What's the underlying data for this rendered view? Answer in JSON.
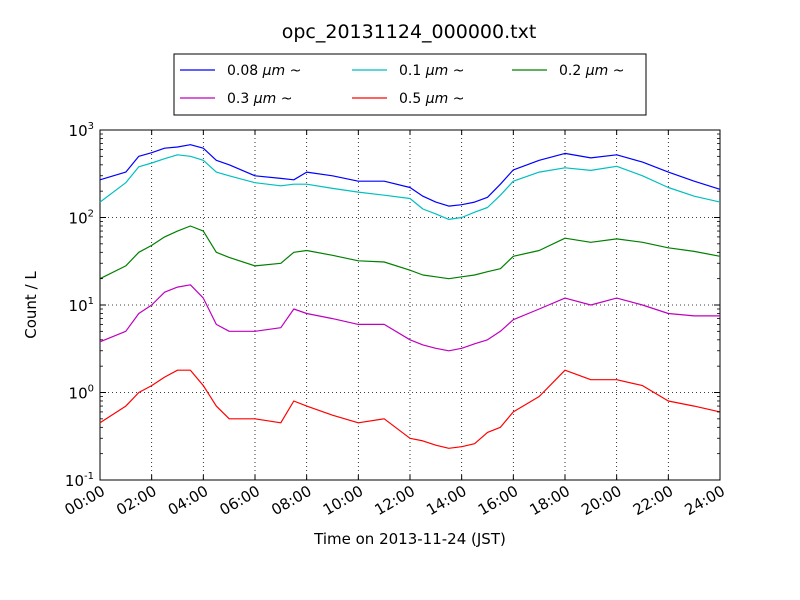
{
  "chart_data": {
    "type": "line",
    "title": "opc_20131124_000000.txt",
    "xlabel": "Time on 2013-11-24 (JST)",
    "ylabel": "Count / L",
    "y_scale": "log",
    "grid": true,
    "legend_placement": "top-center",
    "xlim": [
      "00:00",
      "24:00"
    ],
    "ylim": [
      0.1,
      1000
    ],
    "x_ticks": [
      "00:00",
      "02:00",
      "04:00",
      "06:00",
      "08:00",
      "10:00",
      "12:00",
      "14:00",
      "16:00",
      "18:00",
      "20:00",
      "22:00",
      "24:00"
    ],
    "y_ticks": [
      {
        "base": "10",
        "exp": "-1",
        "value": 0.1
      },
      {
        "base": "10",
        "exp": "0",
        "value": 1
      },
      {
        "base": "10",
        "exp": "1",
        "value": 10
      },
      {
        "base": "10",
        "exp": "2",
        "value": 100
      },
      {
        "base": "10",
        "exp": "3",
        "value": 1000
      }
    ],
    "x": [
      "00:00",
      "01:00",
      "01:30",
      "02:00",
      "02:30",
      "03:00",
      "03:30",
      "04:00",
      "04:30",
      "05:00",
      "06:00",
      "07:00",
      "07:30",
      "08:00",
      "09:00",
      "10:00",
      "11:00",
      "12:00",
      "12:30",
      "13:00",
      "13:30",
      "14:00",
      "14:30",
      "15:00",
      "15:30",
      "16:00",
      "17:00",
      "18:00",
      "19:00",
      "20:00",
      "21:00",
      "22:00",
      "23:00",
      "24:00"
    ],
    "series": [
      {
        "name_prefix": "0.08 ",
        "name_unit": "μm",
        "name_suffix": " ~",
        "color": "#0000ff",
        "values": [
          270,
          330,
          500,
          550,
          620,
          640,
          680,
          620,
          450,
          400,
          300,
          280,
          270,
          330,
          300,
          260,
          260,
          220,
          175,
          150,
          135,
          140,
          150,
          170,
          240,
          350,
          450,
          540,
          480,
          520,
          430,
          330,
          260,
          210
        ]
      },
      {
        "name_prefix": "0.1 ",
        "name_unit": "μm",
        "name_suffix": " ~",
        "color": "#00bfbf",
        "values": [
          150,
          250,
          380,
          420,
          470,
          520,
          500,
          450,
          330,
          300,
          250,
          230,
          240,
          240,
          215,
          195,
          180,
          165,
          125,
          110,
          95,
          100,
          115,
          130,
          180,
          260,
          330,
          370,
          345,
          385,
          300,
          220,
          175,
          150
        ]
      },
      {
        "name_prefix": "0.2 ",
        "name_unit": "μm",
        "name_suffix": " ~",
        "color": "#008000",
        "values": [
          20,
          28,
          40,
          48,
          60,
          70,
          80,
          70,
          40,
          35,
          28,
          30,
          40,
          42,
          37,
          32,
          31,
          25,
          22,
          21,
          20,
          21,
          22,
          24,
          26,
          36,
          42,
          58,
          52,
          57,
          52,
          45,
          41,
          36
        ]
      },
      {
        "name_prefix": "0.3 ",
        "name_unit": "μm",
        "name_suffix": " ~",
        "color": "#bf00bf",
        "values": [
          3.8,
          5,
          8,
          10,
          14,
          16,
          17,
          12,
          6,
          5,
          5,
          5.5,
          9,
          8,
          7,
          6,
          6,
          4,
          3.5,
          3.2,
          3.0,
          3.2,
          3.6,
          4,
          5,
          6.8,
          9,
          12,
          10,
          12,
          10,
          8,
          7.5,
          7.5
        ]
      },
      {
        "name_prefix": "0.5 ",
        "name_unit": "μm",
        "name_suffix": " ~",
        "color": "#ff0000",
        "values": [
          0.45,
          0.7,
          1.0,
          1.2,
          1.5,
          1.8,
          1.8,
          1.2,
          0.7,
          0.5,
          0.5,
          0.45,
          0.8,
          0.7,
          0.55,
          0.45,
          0.5,
          0.3,
          0.28,
          0.25,
          0.23,
          0.24,
          0.26,
          0.35,
          0.4,
          0.6,
          0.9,
          1.8,
          1.4,
          1.4,
          1.2,
          0.8,
          0.7,
          0.6
        ]
      }
    ]
  }
}
